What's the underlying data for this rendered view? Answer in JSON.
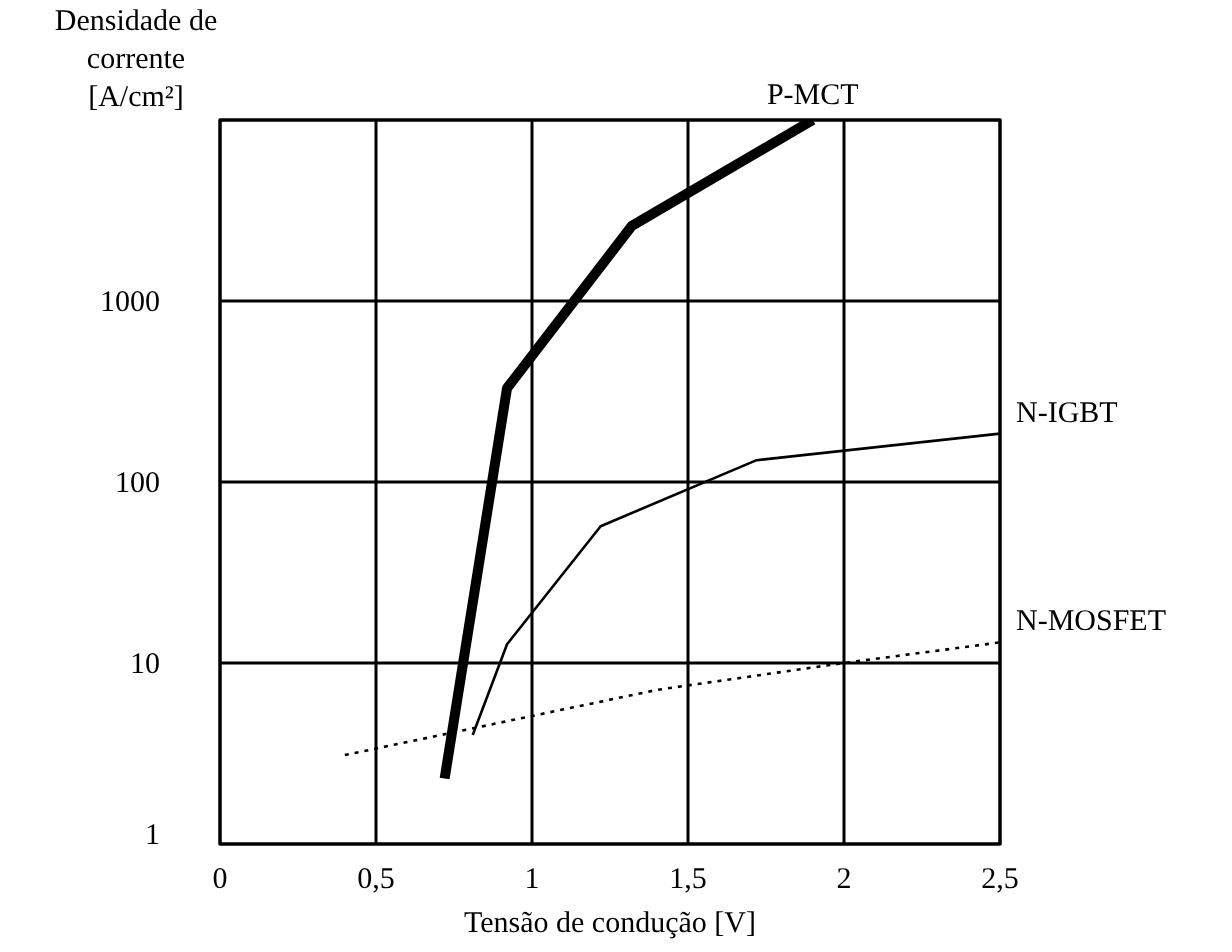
{
  "chart_data": {
    "type": "line",
    "xlabel": "Tensão de condução [V]",
    "ylabel": "Densidade de corrente [A/cm²]",
    "log": "y",
    "grid": true,
    "legend": false,
    "marker": "none",
    "xlim": [
      0,
      2.5
    ],
    "xticks": [
      0,
      {
        "value": 0.5,
        "label": "0,5"
      },
      1,
      {
        "value": 1.5,
        "label": "1,5"
      },
      2,
      {
        "value": 2.5,
        "label": "2,5"
      }
    ],
    "ylim": [
      1,
      10000
    ],
    "yticks": [
      1,
      10,
      100,
      1000,
      {
        "value": 10000,
        "label": null
      }
    ],
    "series": [
      {
        "name": "P-MCT",
        "color": "#000000",
        "line_style": "solid",
        "x": [
          0.72,
          0.92,
          1.32,
          1.9
        ],
        "values": [
          2.3,
          330,
          2600,
          10000
        ]
      },
      {
        "name": "N-IGBT",
        "color": "#000000",
        "line_style": "solid",
        "x": [
          0.81,
          0.92,
          1.22,
          1.72,
          2.5
        ],
        "values": [
          4,
          12.7,
          57,
          132,
          185
        ]
      },
      {
        "name": "N-MOSFET",
        "color": "#000000",
        "line_style": "dotted",
        "x": [
          0.4,
          1.4,
          2.0,
          2.5
        ],
        "values": [
          3.1,
          7.1,
          10,
          13
        ]
      }
    ]
  }
}
